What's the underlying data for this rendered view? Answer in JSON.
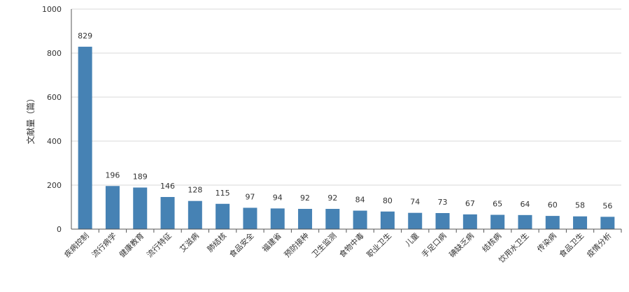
{
  "chart_data": {
    "type": "bar",
    "ylabel": "文献量（篇）",
    "xlabel": "",
    "ylim": [
      0,
      1000
    ],
    "yticks": [
      0,
      200,
      400,
      600,
      800,
      1000
    ],
    "grid": true,
    "bar_color": "#4682b4",
    "grid_color": "#d8d8d8",
    "categories": [
      "疾病控制",
      "流行病学",
      "健康教育",
      "流行特征",
      "艾滋病",
      "肺结核",
      "食品安全",
      "福建省",
      "预防接种",
      "卫生监测",
      "食物中毒",
      "职业卫生",
      "儿童",
      "手足口病",
      "碘缺乏病",
      "结核病",
      "饮用水卫生",
      "传染病",
      "食品卫生",
      "疫情分析"
    ],
    "values": [
      829,
      196,
      189,
      146,
      128,
      115,
      97,
      94,
      92,
      92,
      84,
      80,
      74,
      73,
      67,
      65,
      64,
      60,
      58,
      56
    ]
  }
}
